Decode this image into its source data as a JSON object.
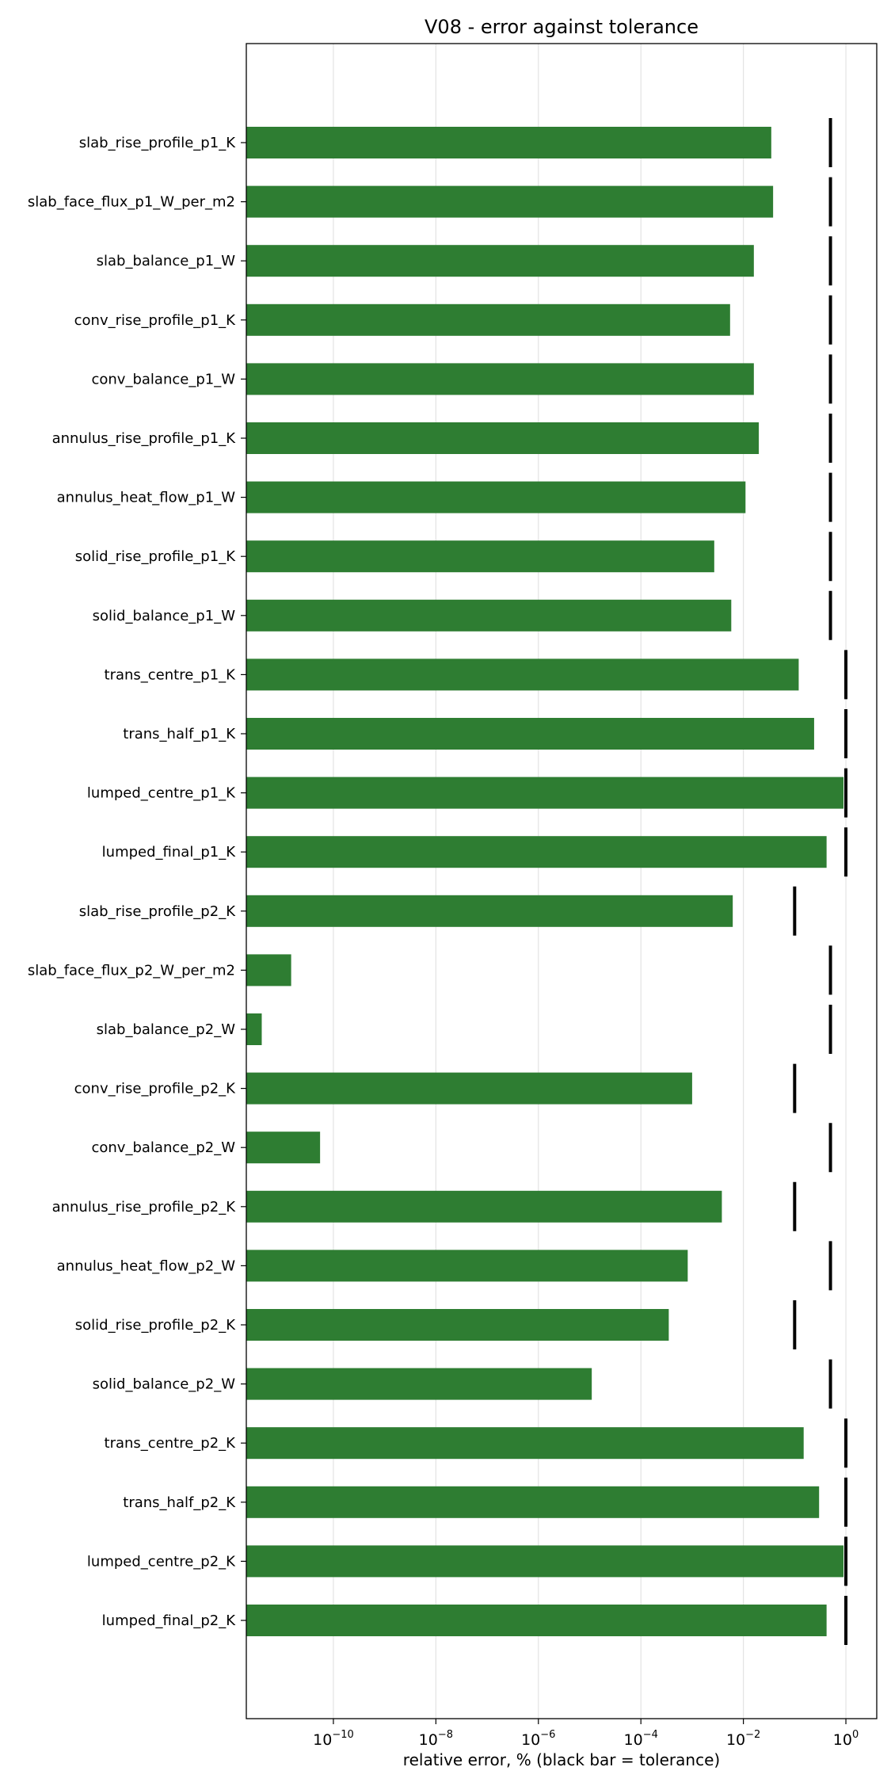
{
  "chart_data": {
    "type": "bar",
    "orientation": "horizontal",
    "title": "V08 - error against tolerance",
    "xlabel": "relative error, % (black bar = tolerance)",
    "ylabel": "",
    "x_scale": "log",
    "xlim": [
      2e-12,
      4
    ],
    "x_ticks": [
      {
        "value": 1e-10,
        "base": "10",
        "exp": "−10"
      },
      {
        "value": 1e-08,
        "base": "10",
        "exp": "−8"
      },
      {
        "value": 1e-06,
        "base": "10",
        "exp": "−6"
      },
      {
        "value": 0.0001,
        "base": "10",
        "exp": "−4"
      },
      {
        "value": 0.01,
        "base": "10",
        "exp": "−2"
      },
      {
        "value": 1,
        "base": "10",
        "exp": "0"
      }
    ],
    "grid": "vertical",
    "categories": [
      "slab_rise_profile_p1_K",
      "slab_face_flux_p1_W_per_m2",
      "slab_balance_p1_W",
      "conv_rise_profile_p1_K",
      "conv_balance_p1_W",
      "annulus_rise_profile_p1_K",
      "annulus_heat_flow_p1_W",
      "solid_rise_profile_p1_K",
      "solid_balance_p1_W",
      "trans_centre_p1_K",
      "trans_half_p1_K",
      "lumped_centre_p1_K",
      "lumped_final_p1_K",
      "slab_rise_profile_p2_K",
      "slab_face_flux_p2_W_per_m2",
      "slab_balance_p2_W",
      "conv_rise_profile_p2_K",
      "conv_balance_p2_W",
      "annulus_rise_profile_p2_K",
      "annulus_heat_flow_p2_W",
      "solid_rise_profile_p2_K",
      "solid_balance_p2_W",
      "trans_centre_p2_K",
      "trans_half_p2_K",
      "lumped_centre_p2_K",
      "lumped_final_p2_K"
    ],
    "series": [
      {
        "name": "relative error",
        "color": "#2e7d32",
        "values": [
          0.035,
          0.038,
          0.016,
          0.0055,
          0.016,
          0.02,
          0.011,
          0.0027,
          0.0058,
          0.12,
          0.24,
          0.9,
          0.42,
          0.0062,
          1.5e-11,
          4e-12,
          0.001,
          5.5e-11,
          0.0038,
          0.00082,
          0.00035,
          1.1e-05,
          0.15,
          0.3,
          0.9,
          0.42
        ]
      },
      {
        "name": "tolerance",
        "color": "#000000",
        "values": [
          0.5,
          0.5,
          0.5,
          0.5,
          0.5,
          0.5,
          0.5,
          0.5,
          0.5,
          1,
          1,
          1,
          1,
          0.1,
          0.5,
          0.5,
          0.1,
          0.5,
          0.1,
          0.5,
          0.1,
          0.5,
          1,
          1,
          1,
          1
        ]
      }
    ]
  }
}
